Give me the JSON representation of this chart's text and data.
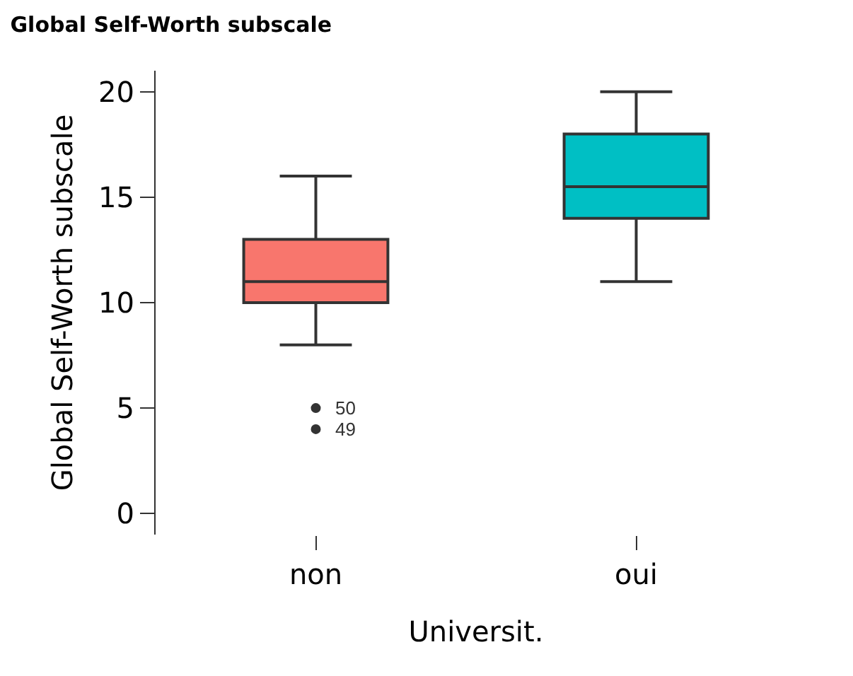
{
  "chart_data": {
    "type": "box",
    "title": "Global Self-Worth subscale",
    "xlabel": "Universit.",
    "ylabel": "Global Self-Worth subscale",
    "categories": [
      "non",
      "oui"
    ],
    "colors": [
      "#f8766d",
      "#00bfc4"
    ],
    "series": [
      {
        "type": "scatter",
        "x": [
          "non",
          "non"
        ],
        "values": [
          5,
          4
        ],
        "color": "#333333"
      }
    ],
    "boxes": [
      {
        "low": 8,
        "q1": 10,
        "median": 11,
        "q3": 13,
        "high": 16
      },
      {
        "low": 11,
        "q1": 14,
        "median": 15.5,
        "q3": 18,
        "high": 20
      }
    ],
    "ylim": [
      -1,
      21
    ],
    "yticks": [
      0,
      5,
      10,
      15,
      20
    ],
    "grid": false,
    "annotations": [
      {
        "text": "50",
        "x": "non",
        "y": 5
      },
      {
        "text": "49",
        "x": "non",
        "y": 4
      }
    ]
  }
}
